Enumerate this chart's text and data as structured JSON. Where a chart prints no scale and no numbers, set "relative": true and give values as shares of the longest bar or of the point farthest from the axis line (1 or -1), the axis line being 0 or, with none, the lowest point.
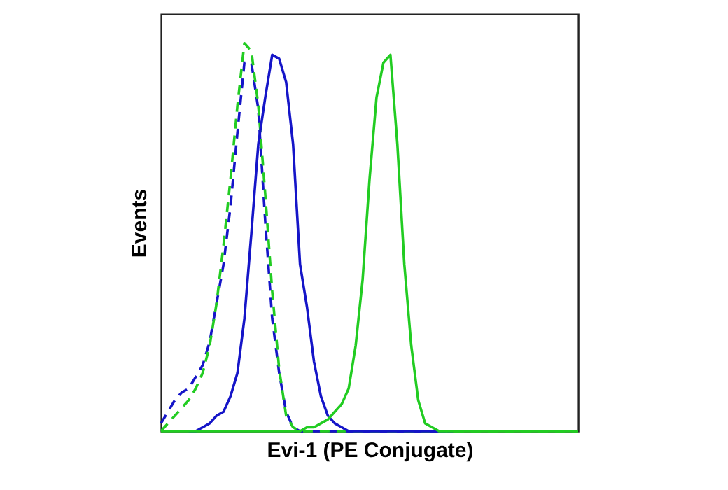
{
  "chart_data": {
    "type": "line",
    "relative": true,
    "xlabel": "Evi-1 (PE Conjugate)",
    "ylabel": "Events",
    "tick_labels": false,
    "grid": false,
    "categories": [
      null,
      null,
      null,
      null,
      null,
      null,
      null,
      null,
      null,
      null,
      null,
      null,
      null,
      null,
      null,
      null,
      null,
      null,
      null,
      null,
      null,
      null,
      null,
      null,
      null,
      null,
      null,
      null,
      null,
      null,
      null,
      null,
      null,
      null,
      null,
      null,
      null,
      null,
      null,
      null,
      null,
      null,
      null,
      null,
      null,
      null,
      null,
      null,
      null,
      null,
      null,
      null,
      null,
      null,
      null,
      null,
      null,
      null,
      null,
      null,
      null
    ],
    "series": [
      {
        "color": "#1515c8",
        "line_style": "dashed",
        "values": [
          0.02,
          0.05,
          0.08,
          0.1,
          0.11,
          0.14,
          0.17,
          0.23,
          0.33,
          0.43,
          0.58,
          0.77,
          0.95,
          0.95,
          0.83,
          0.54,
          0.29,
          0.15,
          0.05,
          0.01,
          0,
          0,
          0,
          0,
          0,
          0,
          0,
          0,
          0,
          0,
          0,
          0,
          0,
          0,
          0,
          0,
          0,
          0,
          0,
          0,
          0,
          0,
          0,
          null,
          null,
          null,
          null,
          null,
          null,
          null,
          null,
          null,
          null,
          null,
          null,
          null,
          null,
          null,
          null,
          null,
          null
        ]
      },
      {
        "color": "#22cc22",
        "line_style": "dashed",
        "values": [
          0,
          0.02,
          0.04,
          0.06,
          0.08,
          0.11,
          0.15,
          0.22,
          0.33,
          0.48,
          0.65,
          0.84,
          1,
          0.98,
          0.84,
          0.61,
          0.36,
          0.16,
          0.04,
          0.01,
          0,
          0,
          0,
          0,
          0,
          0,
          0,
          0,
          0,
          0,
          0,
          0,
          0,
          0,
          0,
          0,
          0,
          0,
          0,
          0,
          0,
          0,
          0,
          0,
          0,
          0,
          0,
          0,
          0,
          0,
          0,
          0,
          0,
          0,
          0,
          0,
          0,
          0,
          0,
          0,
          0
        ]
      },
      {
        "color": "#1515c8",
        "line_style": "solid",
        "values": [
          null,
          null,
          null,
          null,
          0,
          0,
          0.01,
          0.02,
          0.04,
          0.05,
          0.09,
          0.15,
          0.29,
          0.51,
          0.74,
          0.86,
          0.97,
          0.96,
          0.9,
          0.74,
          0.43,
          0.32,
          0.18,
          0.09,
          0.04,
          0.02,
          0.01,
          0,
          0,
          0,
          0,
          0,
          0,
          0,
          0,
          0,
          0,
          0,
          0,
          0,
          0,
          0,
          null,
          null,
          null,
          null,
          null,
          null,
          null,
          null,
          null,
          null,
          null,
          null,
          null,
          null,
          null,
          null,
          null,
          null,
          null
        ]
      },
      {
        "color": "#22cc22",
        "line_style": "solid",
        "values": [
          0,
          0,
          0,
          0,
          0,
          0,
          0,
          0,
          0,
          0,
          0,
          0,
          0,
          0,
          0,
          0,
          0,
          0,
          0,
          0,
          0,
          0.01,
          0.01,
          0.02,
          0.03,
          0.05,
          0.07,
          0.11,
          0.22,
          0.39,
          0.65,
          0.86,
          0.95,
          0.97,
          0.74,
          0.43,
          0.22,
          0.08,
          0.02,
          0.01,
          0,
          0,
          0,
          0,
          0,
          0,
          0,
          0,
          0,
          0,
          0,
          0,
          0,
          0,
          0,
          0,
          0,
          0,
          0,
          0,
          0
        ]
      }
    ]
  }
}
